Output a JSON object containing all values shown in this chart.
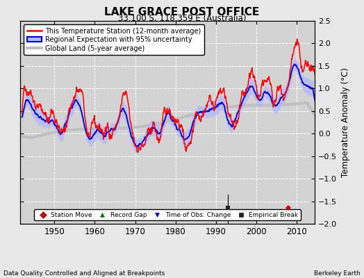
{
  "title": "LAKE GRACE POST OFFICE",
  "subtitle": "33.100 S, 118.359 E (Australia)",
  "ylabel": "Temperature Anomaly (°C)",
  "xlabel_left": "Data Quality Controlled and Aligned at Breakpoints",
  "xlabel_right": "Berkeley Earth",
  "ylim": [
    -2.0,
    2.5
  ],
  "xlim": [
    1941.5,
    2014.5
  ],
  "yticks": [
    -2,
    -1.5,
    -1,
    -0.5,
    0,
    0.5,
    1,
    1.5,
    2,
    2.5
  ],
  "xticks": [
    1950,
    1960,
    1970,
    1980,
    1990,
    2000,
    2010
  ],
  "bg_color": "#e8e8e8",
  "plot_bg_color": "#d3d3d3",
  "grid_color": "#ffffff",
  "station_line_color": "#ff0000",
  "regional_line_color": "#0000cc",
  "regional_fill_color": "#b0b8ff",
  "global_land_color": "#c0c0c0",
  "station_move_color": "#cc0000",
  "record_gap_color": "#007700",
  "obs_change_color": "#0000cc",
  "empirical_break_color": "#222222",
  "legend_entries": [
    "This Temperature Station (12-month average)",
    "Regional Expectation with 95% uncertainty",
    "Global Land (5-year average)"
  ],
  "marker_entries": [
    {
      "label": "Station Move",
      "color": "#cc0000",
      "marker": "D"
    },
    {
      "label": "Record Gap",
      "color": "#007700",
      "marker": "^"
    },
    {
      "label": "Time of Obs. Change",
      "color": "#0000cc",
      "marker": "v"
    },
    {
      "label": "Empirical Break",
      "color": "#222222",
      "marker": "s"
    }
  ],
  "station_move_years": [
    2008
  ],
  "station_move_vals": [
    -1.65
  ],
  "empirical_break_years": [
    1993
  ],
  "empirical_break_vals": [
    -1.65
  ],
  "seed": 42
}
